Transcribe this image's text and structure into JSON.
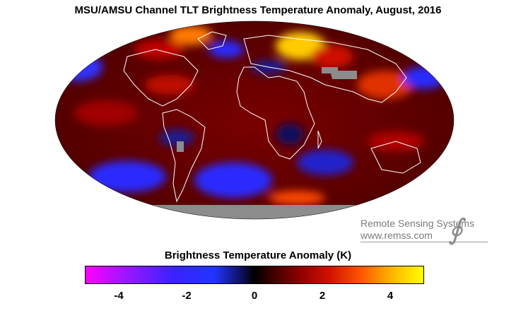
{
  "title": "MSU/AMSU Channel TLT Brightness Temperature Anomaly, August, 2016",
  "logo": {
    "line1": "Remote Sensing Systems",
    "line2": "www.remss.com"
  },
  "colorbar": {
    "title": "Brightness Temperature Anomaly (K)",
    "ticks": [
      {
        "label": "-4",
        "value": -4
      },
      {
        "label": "-2",
        "value": -2
      },
      {
        "label": "0",
        "value": 0
      },
      {
        "label": "2",
        "value": 2
      },
      {
        "label": "4",
        "value": 4
      }
    ],
    "range": [
      -5,
      5
    ]
  },
  "colors": {
    "neg_strong": "#ff00ff",
    "neg": "#2a2aff",
    "zero": "#000000",
    "pos": "#b00000",
    "pos_strong": "#ffff00",
    "missing": "#8c8c8c",
    "coast": "#ffffff"
  },
  "map": {
    "projection": "Mollweide"
  }
}
